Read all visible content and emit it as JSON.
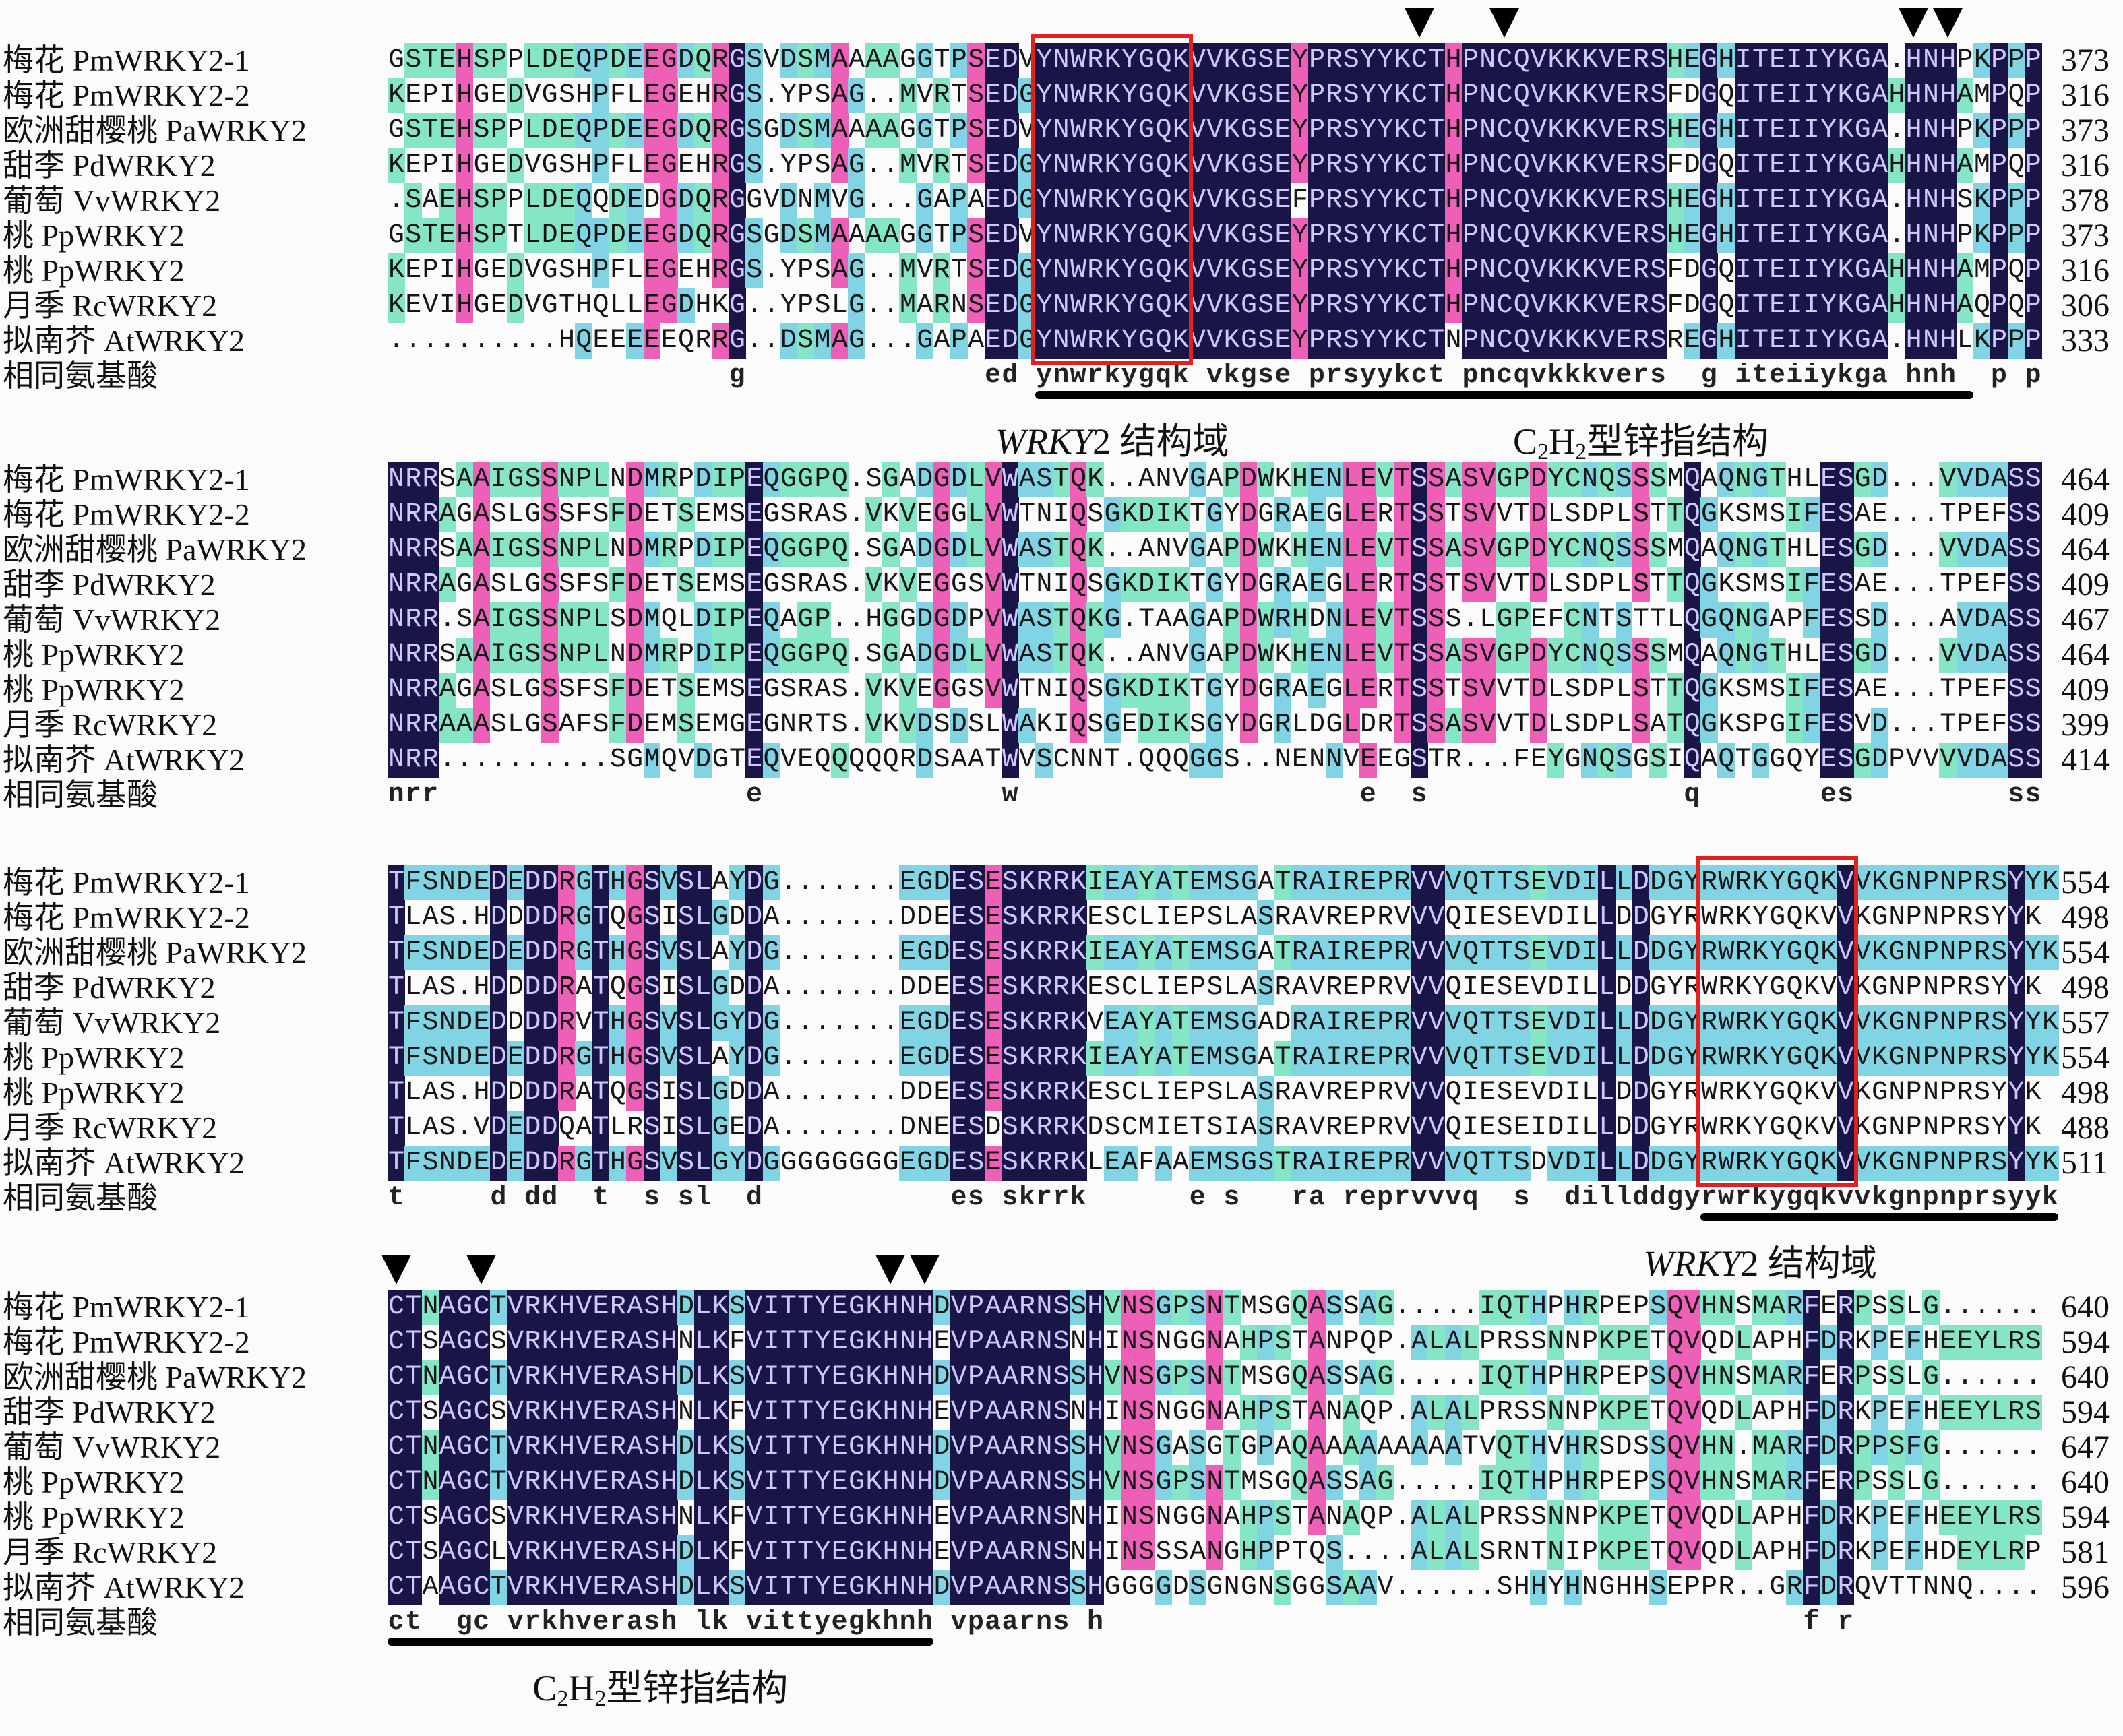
{
  "species": [
    "梅花 PmWRKY2-1",
    "梅花 PmWRKY2-2",
    "欧洲甜樱桃 PaWRKY2",
    "甜李 PdWRKY2",
    "葡萄 VvWRKY2",
    "桃 PpWRKY2",
    "桃 PpWRKY2",
    "月季 RcWRKY2",
    "拟南芥 AtWRKY2"
  ],
  "consensus_label": "相同氨基酸",
  "colors": {
    "identity_100": "#1a1547",
    "identity_75": "#ee5fb8",
    "identity_50": "#80d4e4",
    "identity_33": "#84e6c6",
    "domain_box": "#e2201e"
  },
  "labels": {
    "wrky_domain": {
      "italic": "WRKY",
      "rest": "2 结构域"
    },
    "zinc_finger": {
      "c": "C",
      "sub1": "2",
      "h": "H",
      "sub2": "2",
      "rest": "型锌指结构"
    }
  },
  "blocks": [
    {
      "rows": [
        {
          "seq": "GSTEHSPPLDEQPDEEGDQRGSVDSMAAAAGGTPSEDVYNWRKYGQKVVKGSEYPRSYYKCTHPNCQVKKKVERSHEGHITEIIYKGA.HNHPKPPP",
          "end": "373"
        },
        {
          "seq": "KEPIHGEDVGSHPFLEGEHRGS.YPSAG..MVRTSEDGYNWRKYGQKVVKGSEYPRSYYKCTHPNCQVKKKVERSFDGQITEIIYKGAHHNHAMPQP",
          "end": "316"
        },
        {
          "seq": "GSTEHSPPLDEQPDEEGDQRGSGDSMAAAAGGTPSEDVYNWRKYGQKVVKGSEYPRSYYKCTHPNCQVKKKVERSHEGHITEIIYKGA.HNHPKPPP",
          "end": "373"
        },
        {
          "seq": "KEPIHGEDVGSHPFLEGEHRGS.YPSAG..MVRTSEDGYNWRKYGQKVVKGSEYPRSYYKCTHPNCQVKKKVERSFDGQITEIIYKGAHHNHAMPQP",
          "end": "316"
        },
        {
          "seq": ".SAEHSPPLDEQQDEDGDQRGGVDNMVG...GAPAEDGYNWRKYGQKVVKGSEFPRSYYKCTHPNCQVKKKVERSHEGHITEIIYKGA.HNHSKPPP",
          "end": "378"
        },
        {
          "seq": "GSTEHSPTLDEQPDEEGDQRGSGDSMAAAAGGTPSEDVYNWRKYGQKVVKGSEYPRSYYKCTHPNCQVKKKVERSHEGHITEIIYKGA.HNHPKPPP",
          "end": "373"
        },
        {
          "seq": "KEPIHGEDVGSHPFLEGEHRGS.YPSAG..MVRTSEDGYNWRKYGQKVVKGSEYPRSYYKCTHPNCQVKKKVERSFDGQITEIIYKGAHHNHAMPQP",
          "end": "316"
        },
        {
          "seq": "KEVIHGEDVGTHQLLEGDHKG..YPSLG..MARNSEDGYNWRKYGQKVVKGSEYPRSYYKCTHPNCQVKKKVERSFDGQITEIIYKGAHHNHAQPQP",
          "end": "306"
        },
        {
          "seq": "..........HQEEEEEQRRG..DSMAG...GAPAEDGYNWRKYGQKVVKGSEYPRSYYKCTNPNCQVKKKVERSREGHITEIIYKGA.HNHLKPPP",
          "end": "333"
        }
      ],
      "consensus": "                    g              ed ynwrkygqk vkgse prsyykct pncqvkkkvers  g iteiiykga hnh  p p"
    },
    {
      "rows": [
        {
          "seq": "NRRSAAIGSSNPLNDMRPDIPEQGGPQ.SGADGDLVWASTQK..ANVGAPDWKHENLEVTSSASVGPDYCNQSSSMQAQNGTHLESGD...VVDASS",
          "end": "464"
        },
        {
          "seq": "NRRAGASLGSSFSFDETSEMSEGSRAS.VKVEGGLVWTNIQSGKDIKTGYDGRAEGLERTSSTSVVTDLSDPLSTTQGKSMSIFESAE...TPEFSS",
          "end": "409"
        },
        {
          "seq": "NRRSAAIGSSNPLNDMRPDIPEQGGPQ.SGADGDLVWASTQK..ANVGAPDWKHENLEVTSSASVGPDYCNQSSSMQAQNGTHLESGD...VVDASS",
          "end": "464"
        },
        {
          "seq": "NRRAGASLGSSFSFDETSEMSEGSRAS.VKVEGGSVWTNIQSGKDIKTGYDGRAEGLERTSSTSVVTDLSDPLSTTQGKSMSIFESAE...TPEFSS",
          "end": "409"
        },
        {
          "seq": "NRR.SAIGSSNPLSDMQLDIPEQAGP..HGGDGDPVWASTQKG.TAAGAPDWRHDNLEVTSSS.LGPEFCNTSTTLQGQNGAPFESSD...AVDASS",
          "end": "467"
        },
        {
          "seq": "NRRSAAIGSSNPLNDMRPDIPEQGGPQ.SGADGDLVWASTQK..ANVGAPDWKHENLEVTSSASVGPDYCNQSSSMQAQNGTHLESGD...VVDASS",
          "end": "464"
        },
        {
          "seq": "NRRAGASLGSSFSFDETSEMSEGSRAS.VKVEGGSVWTNIQSGKDIKTGYDGRAEGLERTSSTSVVTDLSDPLSTTQGKSMSIFESAE...TPEFSS",
          "end": "409"
        },
        {
          "seq": "NRRAAASLGSAFSFDEMSEMGEGNRTS.VKVDSDSLWAKIQSGEDIKSGYDGRLDGLDRTSSASVVTDLSDPLSATQGKSPGIFESVD...TPEFSS",
          "end": "399"
        },
        {
          "seq": "NRR..........SGMQVDGTEQVEQQQQQRDSAATWVSCNNT.QQQGGS..NENNVEEGSTR...FEYGNQSGSIQAQTGGQYESGDPVVVVDASS",
          "end": "414"
        }
      ],
      "consensus": "nrr                  e              w                    e  s               q       es         ss"
    },
    {
      "rows": [
        {
          "seq": "TFSNDEDEDDRGTHGSVSLAYDG.......EGDESESKRRKIEAYATEMSGATRAIREPRVVVQTTSEVDILLDDGYRWRKYGQKVVKGNPNPRSYYK",
          "end": "554"
        },
        {
          "seq": "TLAS.HDDDDRGTQGSISLGDDA.......DDEESESKRRKESCLIEPSLASRAVREPRVVVQIESEVDILLDDGYRWRKYGQKVVKGNPNPRSYYK",
          "end": "498"
        },
        {
          "seq": "TFSNDEDEDDRGTHGSVSLAYDG.......EGDESESKRRKIEAYATEMSGATRAIREPRVVVQTTSEVDILLDDGYRWRKYGQKVVKGNPNPRSYYK",
          "end": "554"
        },
        {
          "seq": "TLAS.HDDDDRATQGSISLGDDA.......DDEESESKRRKESCLIEPSLASRAVREPRVVVQIESEVDILLDDGYRWRKYGQKVVKGNPNPRSYYK",
          "end": "498"
        },
        {
          "seq": "TFSNDEDDDDRVTHGSVSLGYDG.......EGDESESKRRKVEAYATEMSGADRAIREPRVVVQTTSEVDILLDDGYRWRKYGQKVVKGNPNPRSYYK",
          "end": "557"
        },
        {
          "seq": "TFSNDEDEDDRGTHGSVSLAYDG.......EGDESESKRRKIEAYATEMSGATRAIREPRVVVQTTSEVDILLDDGYRWRKYGQKVVKGNPNPRSYYK",
          "end": "554"
        },
        {
          "seq": "TLAS.HDDDDRATQGSISLGDDA.......DDEESESKRRKESCLIEPSLASRAVREPRVVVQIESEVDILLDDGYRWRKYGQKVVKGNPNPRSYYK",
          "end": "498"
        },
        {
          "seq": "TLAS.VDEDDQATLRSISLGEDA.......DNEESDSKRRKDSCMIETSIASRAVREPRVVVQIESEIDILLDDGYRWRKYGQKVVKGNPNPRSYYK",
          "end": "488"
        },
        {
          "seq": "TFSNDEDEDDRGTHGSVSLGYDGGGGGGGGEGDESESKRRKLEAFAAEMSGSTRAIREPRVVVQTTSDVDILLDDGYRWRKYGQKVVKGNPNPRSYYK",
          "end": "511"
        }
      ],
      "consensus": "t     d dd  t  s sl  d           es skrrk      e s   ra reprvvvq  s  dillddgyrwrkygqkvvkgnpnprsyyk"
    },
    {
      "rows": [
        {
          "seq": "CTNAGCTVRKHVERASHDLKSVITTYEGKHNHDVPAARNSSHVNSGPSNTMSGQASSAG.....IQTHPHRPEPSQVHNSMARFERPSSLG......",
          "end": "640"
        },
        {
          "seq": "CTSAGCSVRKHVERASHNLKFVITTYEGKHNHEVPAARNSNHINSNGGNAHPSTANPQP.ALALPRSSNNPKPETQVQDLAPHFDRKPEFHEEYLRS",
          "end": "594"
        },
        {
          "seq": "CTNAGCTVRKHVERASHDLKSVITTYEGKHNHDVPAARNSSHVNSGPSNTMSGQASSAG.....IQTHPHRPEPSQVHNSMARFERPSSLG......",
          "end": "640"
        },
        {
          "seq": "CTSAGCSVRKHVERASHNLKFVITTYEGKHNHEVPAARNSNHINSNGGNAHPSTANAQP.ALALPRSSNNPKPETQVQDLAPHFDRKPEFHEEYLRS",
          "end": "594"
        },
        {
          "seq": "CTNAGCTVRKHVERASHDLKSVITTYEGKHNHDVPAARNSSHVNSGASGTGPAQAAAAAAAAATVQTHVHRSDSSQVHN.MARFDRPPSFG......",
          "end": "647"
        },
        {
          "seq": "CTNAGCTVRKHVERASHDLKSVITTYEGKHNHDVPAARNSSHVNSGPSNTMSGQASSAG.....IQTHPHRPEPSQVHNSMARFERPSSLG......",
          "end": "640"
        },
        {
          "seq": "CTSAGCSVRKHVERASHNLKFVITTYEGKHNHEVPAARNSNHINSNGGNAHPSTANAQP.ALALPRSSNNPKPETQVQDLAPHFDRKPEFHEEYLRS",
          "end": "594"
        },
        {
          "seq": "CTSAGCLVRKHVERASHDLKFVITTYEGKHNHEVPAARNSNHINSSSANGHPPTQS....ALALSRNTNIPKPETQVQDLAPHFDRKPEFHDEYLRP",
          "end": "581"
        },
        {
          "seq": "CTAAGCTVRKHVERASHDLKSVITTYEGKHNHDVPAARNSSHGGGGDSGNGNSGGSAAV......SHHYHNGHHSEPPR..GRFDRQVTTNNQ....",
          "end": "596"
        }
      ],
      "consensus": "ct  gc vrkhverash lk vittyegkhnh vpaarns h                                         f r"
    }
  ]
}
